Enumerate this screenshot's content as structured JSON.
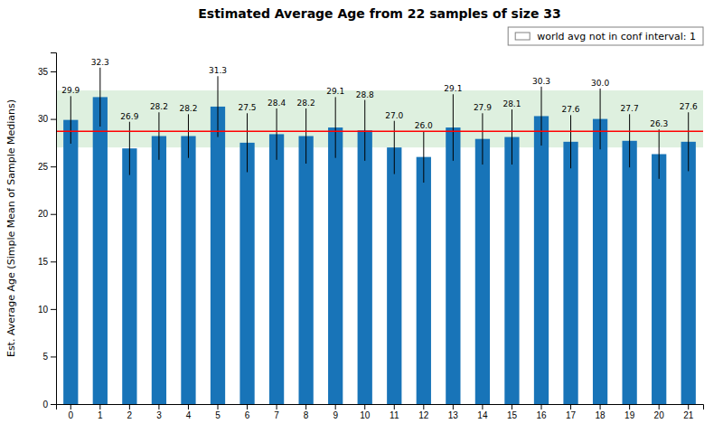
{
  "chart_data": {
    "type": "bar",
    "title": "Estimated Average Age from 22 samples of size 33",
    "ylabel": "Est. Average Age (Simple Mean of Sample Medians)",
    "categories": [
      "0",
      "1",
      "2",
      "3",
      "4",
      "5",
      "6",
      "7",
      "8",
      "9",
      "10",
      "11",
      "12",
      "13",
      "14",
      "15",
      "16",
      "17",
      "18",
      "19",
      "20",
      "21"
    ],
    "values": [
      29.9,
      32.3,
      26.9,
      28.2,
      28.2,
      31.3,
      27.5,
      28.4,
      28.2,
      29.1,
      28.8,
      27.0,
      26.0,
      29.1,
      27.9,
      28.1,
      30.3,
      27.6,
      30.0,
      27.7,
      26.3,
      27.6
    ],
    "value_labels": [
      "29.9",
      "32.3",
      "26.9",
      "28.2",
      "28.2",
      "31.3",
      "27.5",
      "28.4",
      "28.2",
      "29.1",
      "28.8",
      "27.0",
      "26.0",
      "29.1",
      "27.9",
      "28.1",
      "30.3",
      "27.6",
      "30.0",
      "27.7",
      "26.3",
      "27.6"
    ],
    "errors": [
      2.5,
      3.1,
      2.8,
      2.5,
      2.3,
      3.2,
      3.1,
      2.7,
      2.9,
      3.2,
      3.2,
      2.8,
      2.7,
      3.5,
      2.7,
      2.9,
      3.1,
      2.8,
      3.2,
      2.8,
      2.6,
      3.1
    ],
    "color": "#1874b8",
    "data_labels": true,
    "reference_lines": [
      {
        "value": 28.7,
        "color": "red"
      }
    ],
    "bands": [
      {
        "from": 27.0,
        "to": 33.0,
        "color": "#c8e6c9"
      }
    ],
    "legend": "upper right",
    "legend_label": "world avg not in conf interval: 1",
    "ylim": [
      0,
      37
    ],
    "yticks": [
      0,
      5,
      10,
      15,
      20,
      25,
      30,
      35
    ]
  }
}
